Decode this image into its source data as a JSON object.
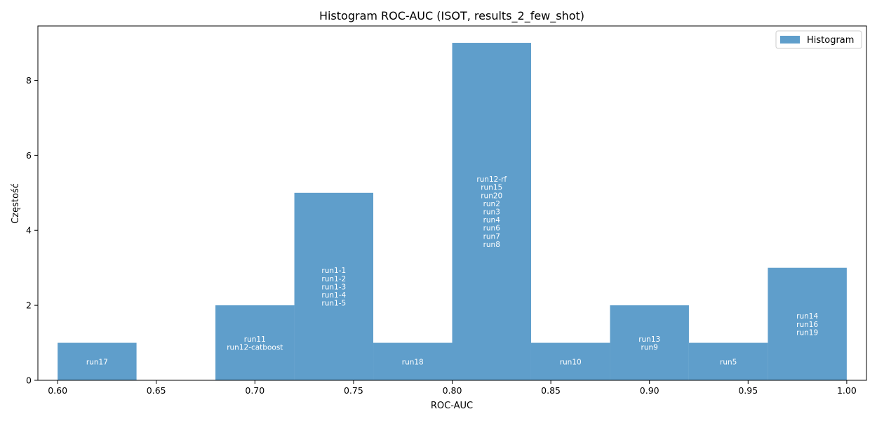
{
  "chart_data": {
    "type": "bar",
    "title": "Histogram ROC-AUC (ISOT, results_2_few_shot)",
    "xlabel": "ROC-AUC",
    "ylabel": "Częstość",
    "xlim": [
      0.59,
      1.01
    ],
    "ylim": [
      0,
      9.45
    ],
    "x_ticks": [
      0.6,
      0.65,
      0.7,
      0.75,
      0.8,
      0.85,
      0.9,
      0.95,
      1.0
    ],
    "x_tick_labels": [
      "0.60",
      "0.65",
      "0.70",
      "0.75",
      "0.80",
      "0.85",
      "0.90",
      "0.95",
      "1.00"
    ],
    "y_ticks": [
      0,
      2,
      4,
      6,
      8
    ],
    "y_tick_labels": [
      "0",
      "2",
      "4",
      "6",
      "8"
    ],
    "grid": false,
    "legend": {
      "placement": "top-right",
      "entries": [
        "Histogram"
      ]
    },
    "bar_color": "#5f9ecb",
    "series": [
      {
        "name": "Histogram",
        "bins": [
          {
            "x0": 0.6,
            "x1": 0.64,
            "count": 1,
            "runs": [
              "run17"
            ]
          },
          {
            "x0": 0.64,
            "x1": 0.68,
            "count": 0,
            "runs": []
          },
          {
            "x0": 0.68,
            "x1": 0.72,
            "count": 2,
            "runs": [
              "run11",
              "run12-catboost"
            ]
          },
          {
            "x0": 0.72,
            "x1": 0.76,
            "count": 5,
            "runs": [
              "run1-1",
              "run1-2",
              "run1-3",
              "run1-4",
              "run1-5"
            ]
          },
          {
            "x0": 0.76,
            "x1": 0.8,
            "count": 1,
            "runs": [
              "run18"
            ]
          },
          {
            "x0": 0.8,
            "x1": 0.84,
            "count": 9,
            "runs": [
              "run12-rf",
              "run15",
              "run20",
              "run2",
              "run3",
              "run4",
              "run6",
              "run7",
              "run8"
            ]
          },
          {
            "x0": 0.84,
            "x1": 0.88,
            "count": 1,
            "runs": [
              "run10"
            ]
          },
          {
            "x0": 0.88,
            "x1": 0.92,
            "count": 2,
            "runs": [
              "run13",
              "run9"
            ]
          },
          {
            "x0": 0.92,
            "x1": 0.96,
            "count": 1,
            "runs": [
              "run5"
            ]
          },
          {
            "x0": 0.96,
            "x1": 1.0,
            "count": 3,
            "runs": [
              "run14",
              "run16",
              "run19"
            ]
          }
        ]
      }
    ]
  }
}
